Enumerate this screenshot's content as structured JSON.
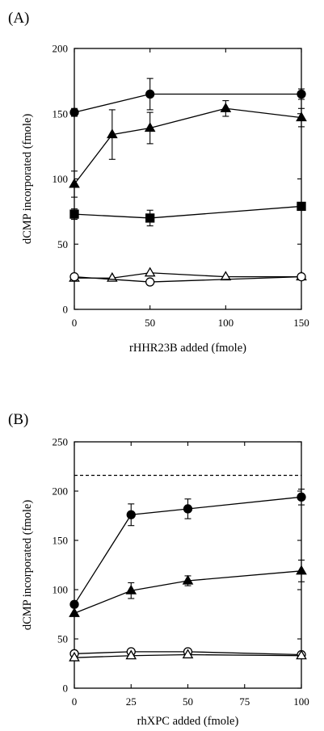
{
  "chart_data": [
    {
      "type": "line",
      "panel_label": "(A)",
      "xlabel": "rHHR23B added (fmole)",
      "ylabel": "dCMP incorporated (fmole)",
      "xlim": [
        0,
        150
      ],
      "ylim": [
        0,
        200
      ],
      "x_ticks": [
        0,
        50,
        100,
        150
      ],
      "y_ticks": [
        0,
        50,
        100,
        150,
        200
      ],
      "grid": false,
      "reference_line": null,
      "series": [
        {
          "marker": "filled-circle",
          "points": [
            [
              0,
              151
            ],
            [
              50,
              165
            ],
            [
              150,
              165
            ]
          ],
          "errors": [
            3,
            12,
            4
          ]
        },
        {
          "marker": "filled-triangle",
          "points": [
            [
              0,
              96
            ],
            [
              25,
              134
            ],
            [
              50,
              139
            ],
            [
              100,
              154
            ],
            [
              150,
              147
            ]
          ],
          "errors": [
            10,
            19,
            12,
            6,
            7
          ]
        },
        {
          "marker": "filled-square",
          "points": [
            [
              0,
              73
            ],
            [
              50,
              70
            ],
            [
              150,
              79
            ]
          ],
          "errors": [
            4,
            6,
            3
          ]
        },
        {
          "marker": "open-triangle",
          "points": [
            [
              0,
              24
            ],
            [
              25,
              24
            ],
            [
              50,
              28
            ],
            [
              100,
              25
            ],
            [
              150,
              25
            ]
          ],
          "errors": [
            0,
            0,
            0,
            0,
            0
          ]
        },
        {
          "marker": "open-circle",
          "points": [
            [
              0,
              25
            ],
            [
              50,
              21
            ],
            [
              150,
              25
            ]
          ],
          "errors": [
            0,
            0,
            0
          ]
        }
      ]
    },
    {
      "type": "line",
      "panel_label": "(B)",
      "xlabel": "rhXPC added (fmole)",
      "ylabel": "dCMP incorporated (fmole)",
      "xlim": [
        0,
        100
      ],
      "ylim": [
        0,
        250
      ],
      "x_ticks": [
        0,
        25,
        50,
        75,
        100
      ],
      "y_ticks": [
        0,
        50,
        100,
        150,
        200,
        250
      ],
      "grid": false,
      "reference_line": {
        "y": 216,
        "style": "dashed"
      },
      "series": [
        {
          "marker": "filled-circle",
          "points": [
            [
              0,
              85
            ],
            [
              25,
              176
            ],
            [
              50,
              182
            ],
            [
              100,
              194
            ]
          ],
          "errors": [
            0,
            11,
            10,
            8
          ]
        },
        {
          "marker": "filled-triangle",
          "points": [
            [
              0,
              76
            ],
            [
              25,
              99
            ],
            [
              50,
              109
            ],
            [
              100,
              119
            ]
          ],
          "errors": [
            0,
            8,
            5,
            11
          ]
        },
        {
          "marker": "open-circle",
          "points": [
            [
              0,
              35
            ],
            [
              25,
              37
            ],
            [
              50,
              37
            ],
            [
              100,
              34
            ]
          ],
          "errors": [
            0,
            0,
            0,
            0
          ]
        },
        {
          "marker": "open-triangle",
          "points": [
            [
              0,
              31
            ],
            [
              25,
              33
            ],
            [
              50,
              34
            ],
            [
              100,
              33
            ]
          ],
          "errors": [
            0,
            0,
            0,
            0
          ]
        }
      ]
    }
  ]
}
